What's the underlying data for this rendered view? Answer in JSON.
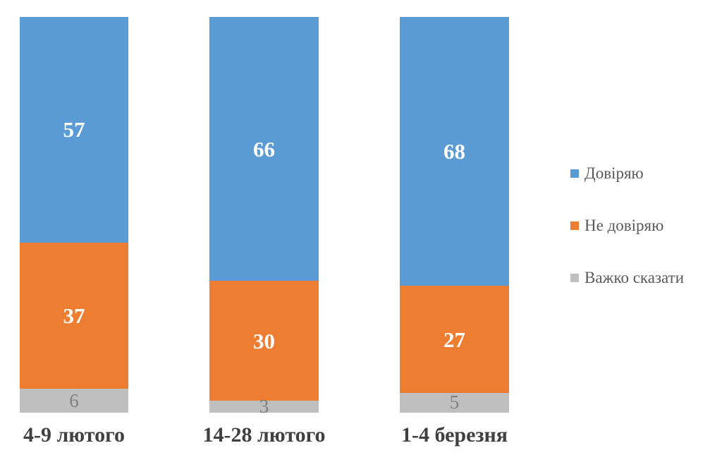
{
  "chart_data": {
    "type": "bar",
    "variant": "stacked-column",
    "orientation": "vertical",
    "categories": [
      "4-9 лютого",
      "14-28 лютого",
      "1-4 березня"
    ],
    "series": [
      {
        "name": "Довіряю",
        "color": "#5B9BD5",
        "label_color": "#FFFFFF",
        "values": [
          57,
          66,
          68
        ]
      },
      {
        "name": "Не довіряю",
        "color": "#ED7D31",
        "label_color": "#FFFFFF",
        "values": [
          37,
          30,
          27
        ]
      },
      {
        "name": "Важко сказати",
        "color": "#BFBFBF",
        "label_color": "#808080",
        "values": [
          6,
          3,
          5
        ]
      }
    ],
    "data_labels": true,
    "grid": false,
    "axes_visible": false,
    "ylim": [
      0,
      100
    ],
    "legend_position": "right"
  },
  "colors": {
    "background": "#FFFFFF",
    "category_label": "#404040",
    "legend_text": "#595959"
  }
}
